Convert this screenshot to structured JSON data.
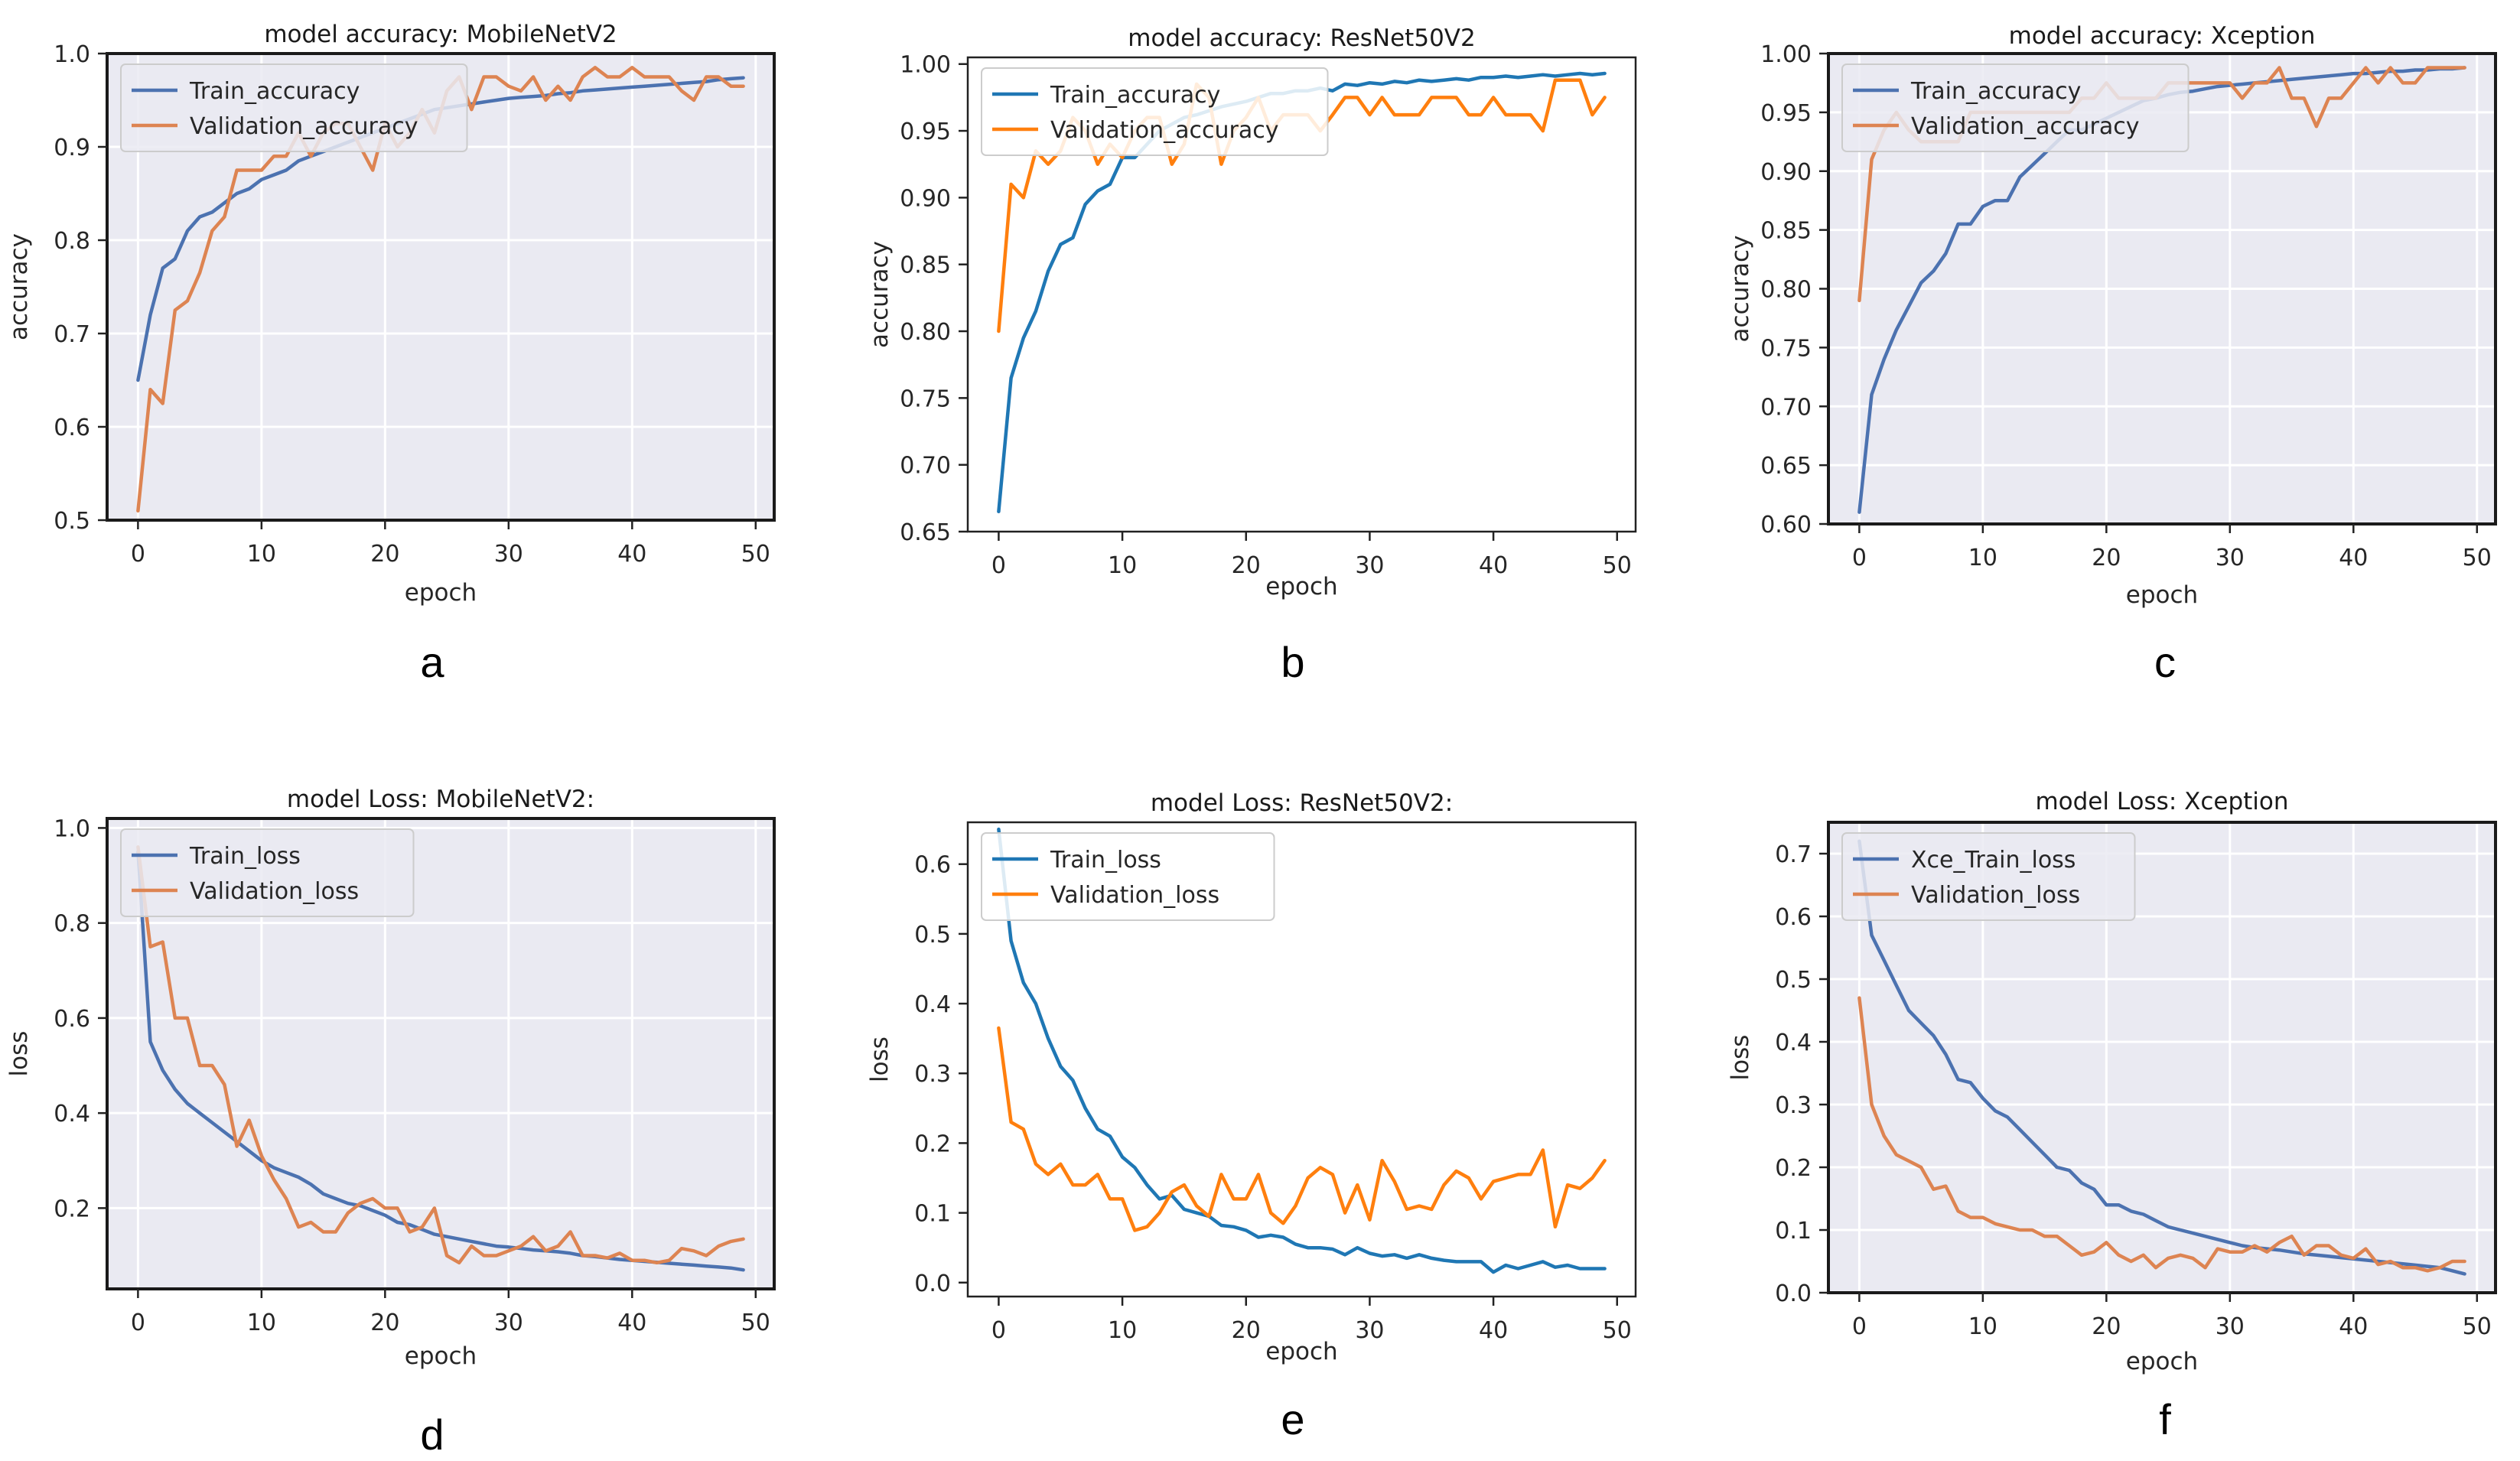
{
  "panel_letters": [
    "a",
    "b",
    "c",
    "d",
    "e",
    "f"
  ],
  "colors": {
    "seaborn_blue": "#4c72b0",
    "seaborn_orange": "#dd8452",
    "tab_blue": "#1f77b4",
    "tab_orange": "#ff7f0e",
    "seaborn_bg": "#eaeaf2",
    "grid": "#ffffff"
  },
  "chart_data": [
    {
      "type": "line",
      "title": "model accuracy: MobileNetV2",
      "xlabel": "epoch",
      "ylabel": "accuracy",
      "style": "seaborn",
      "xlim": [
        -2.5,
        51.5
      ],
      "ylim": [
        0.5,
        1.0
      ],
      "xticks": [
        0,
        10,
        20,
        30,
        40,
        50
      ],
      "yticks": [
        0.5,
        0.6,
        0.7,
        0.8,
        0.9,
        1.0
      ],
      "ytick_labels": [
        "0.5",
        "0.6",
        "0.7",
        "0.8",
        "0.9",
        "1.0"
      ],
      "legend": "top-left",
      "series": [
        {
          "name": "Train_accuracy",
          "color": "#4c72b0",
          "values": [
            0.65,
            0.72,
            0.77,
            0.78,
            0.81,
            0.825,
            0.83,
            0.84,
            0.85,
            0.855,
            0.865,
            0.87,
            0.875,
            0.885,
            0.89,
            0.895,
            0.9,
            0.905,
            0.91,
            0.915,
            0.92,
            0.925,
            0.93,
            0.935,
            0.94,
            0.942,
            0.944,
            0.946,
            0.948,
            0.95,
            0.952,
            0.953,
            0.954,
            0.955,
            0.957,
            0.958,
            0.96,
            0.961,
            0.962,
            0.963,
            0.964,
            0.965,
            0.966,
            0.967,
            0.968,
            0.969,
            0.97,
            0.972,
            0.973,
            0.974
          ]
        },
        {
          "name": "Validation_accuracy",
          "color": "#dd8452",
          "values": [
            0.51,
            0.64,
            0.625,
            0.725,
            0.735,
            0.765,
            0.81,
            0.825,
            0.875,
            0.875,
            0.875,
            0.89,
            0.89,
            0.915,
            0.89,
            0.915,
            0.925,
            0.925,
            0.9,
            0.875,
            0.925,
            0.9,
            0.915,
            0.94,
            0.915,
            0.96,
            0.975,
            0.94,
            0.975,
            0.975,
            0.965,
            0.96,
            0.975,
            0.95,
            0.965,
            0.95,
            0.975,
            0.985,
            0.975,
            0.975,
            0.985,
            0.975,
            0.975,
            0.975,
            0.96,
            0.95,
            0.975,
            0.975,
            0.965,
            0.965
          ]
        }
      ]
    },
    {
      "type": "line",
      "title": "model accuracy: ResNet50V2",
      "xlabel": "epoch",
      "ylabel": "accuracy",
      "style": "default",
      "xlim": [
        -2.5,
        51.5
      ],
      "ylim": [
        0.65,
        1.005
      ],
      "xticks": [
        0,
        10,
        20,
        30,
        40,
        50
      ],
      "yticks": [
        0.65,
        0.7,
        0.75,
        0.8,
        0.85,
        0.9,
        0.95,
        1.0
      ],
      "ytick_labels": [
        "0.65",
        "0.70",
        "0.75",
        "0.80",
        "0.85",
        "0.90",
        "0.95",
        "1.00"
      ],
      "legend": "top-left",
      "series": [
        {
          "name": "Train_accuracy",
          "color": "#1f77b4",
          "values": [
            0.665,
            0.765,
            0.795,
            0.815,
            0.845,
            0.865,
            0.87,
            0.895,
            0.905,
            0.91,
            0.93,
            0.93,
            0.94,
            0.95,
            0.955,
            0.96,
            0.962,
            0.965,
            0.968,
            0.97,
            0.972,
            0.975,
            0.978,
            0.978,
            0.98,
            0.98,
            0.982,
            0.98,
            0.985,
            0.984,
            0.986,
            0.985,
            0.987,
            0.986,
            0.988,
            0.987,
            0.988,
            0.989,
            0.988,
            0.99,
            0.99,
            0.991,
            0.99,
            0.991,
            0.992,
            0.991,
            0.992,
            0.993,
            0.992,
            0.993
          ]
        },
        {
          "name": "Validation_accuracy",
          "color": "#ff7f0e",
          "values": [
            0.8,
            0.91,
            0.9,
            0.935,
            0.925,
            0.935,
            0.96,
            0.95,
            0.925,
            0.94,
            0.93,
            0.95,
            0.96,
            0.96,
            0.925,
            0.94,
            0.985,
            0.975,
            0.925,
            0.95,
            0.96,
            0.975,
            0.95,
            0.962,
            0.962,
            0.962,
            0.95,
            0.962,
            0.975,
            0.975,
            0.962,
            0.975,
            0.962,
            0.962,
            0.962,
            0.975,
            0.975,
            0.975,
            0.962,
            0.962,
            0.975,
            0.962,
            0.962,
            0.962,
            0.95,
            0.988,
            0.988,
            0.988,
            0.962,
            0.975
          ]
        }
      ]
    },
    {
      "type": "line",
      "title": "model accuracy: Xception",
      "xlabel": "epoch",
      "ylabel": "accuracy",
      "style": "seaborn",
      "xlim": [
        -2.5,
        51.5
      ],
      "ylim": [
        0.6,
        1.0
      ],
      "xticks": [
        0,
        10,
        20,
        30,
        40,
        50
      ],
      "yticks": [
        0.6,
        0.65,
        0.7,
        0.75,
        0.8,
        0.85,
        0.9,
        0.95,
        1.0
      ],
      "ytick_labels": [
        "0.60",
        "0.65",
        "0.70",
        "0.75",
        "0.80",
        "0.85",
        "0.90",
        "0.95",
        "1.00"
      ],
      "legend": "top-left",
      "series": [
        {
          "name": "Train_accuracy",
          "color": "#4c72b0",
          "values": [
            0.61,
            0.71,
            0.74,
            0.765,
            0.785,
            0.805,
            0.815,
            0.83,
            0.855,
            0.855,
            0.87,
            0.875,
            0.875,
            0.895,
            0.905,
            0.915,
            0.925,
            0.935,
            0.935,
            0.94,
            0.945,
            0.95,
            0.955,
            0.96,
            0.962,
            0.965,
            0.967,
            0.968,
            0.97,
            0.972,
            0.973,
            0.974,
            0.975,
            0.976,
            0.977,
            0.978,
            0.979,
            0.98,
            0.981,
            0.982,
            0.983,
            0.983,
            0.984,
            0.985,
            0.985,
            0.986,
            0.986,
            0.987,
            0.987,
            0.988
          ]
        },
        {
          "name": "Validation_accuracy",
          "color": "#dd8452",
          "values": [
            0.79,
            0.91,
            0.935,
            0.95,
            0.935,
            0.925,
            0.925,
            0.925,
            0.925,
            0.95,
            0.95,
            0.95,
            0.95,
            0.95,
            0.95,
            0.95,
            0.95,
            0.95,
            0.962,
            0.962,
            0.975,
            0.962,
            0.962,
            0.962,
            0.962,
            0.975,
            0.975,
            0.975,
            0.975,
            0.975,
            0.975,
            0.962,
            0.975,
            0.975,
            0.988,
            0.962,
            0.962,
            0.938,
            0.962,
            0.962,
            0.975,
            0.988,
            0.975,
            0.988,
            0.975,
            0.975,
            0.988,
            0.988,
            0.988,
            0.988
          ]
        }
      ]
    },
    {
      "type": "line",
      "title": "model Loss: MobileNetV2:",
      "xlabel": "epoch",
      "ylabel": "loss",
      "style": "seaborn",
      "xlim": [
        -2.5,
        51.5
      ],
      "ylim": [
        0.03,
        1.02
      ],
      "xticks": [
        0,
        10,
        20,
        30,
        40,
        50
      ],
      "yticks": [
        0.2,
        0.4,
        0.6,
        0.8,
        1.0
      ],
      "ytick_labels": [
        "0.2",
        "0.4",
        "0.6",
        "0.8",
        "1.0"
      ],
      "legend": "top-left",
      "series": [
        {
          "name": "Train_loss",
          "color": "#4c72b0",
          "values": [
            0.95,
            0.55,
            0.49,
            0.45,
            0.42,
            0.4,
            0.38,
            0.36,
            0.34,
            0.32,
            0.3,
            0.285,
            0.275,
            0.265,
            0.25,
            0.23,
            0.22,
            0.21,
            0.205,
            0.195,
            0.185,
            0.17,
            0.165,
            0.155,
            0.145,
            0.14,
            0.135,
            0.13,
            0.125,
            0.12,
            0.118,
            0.115,
            0.112,
            0.11,
            0.108,
            0.105,
            0.1,
            0.098,
            0.095,
            0.092,
            0.09,
            0.088,
            0.086,
            0.084,
            0.082,
            0.08,
            0.078,
            0.076,
            0.074,
            0.07
          ]
        },
        {
          "name": "Validation_loss",
          "color": "#dd8452",
          "values": [
            0.96,
            0.75,
            0.76,
            0.6,
            0.6,
            0.5,
            0.5,
            0.46,
            0.33,
            0.385,
            0.31,
            0.26,
            0.22,
            0.16,
            0.17,
            0.15,
            0.15,
            0.19,
            0.21,
            0.22,
            0.2,
            0.2,
            0.15,
            0.16,
            0.2,
            0.1,
            0.085,
            0.12,
            0.1,
            0.1,
            0.11,
            0.12,
            0.14,
            0.11,
            0.12,
            0.15,
            0.1,
            0.1,
            0.095,
            0.105,
            0.09,
            0.09,
            0.085,
            0.09,
            0.115,
            0.11,
            0.1,
            0.12,
            0.13,
            0.135
          ]
        }
      ]
    },
    {
      "type": "line",
      "title": "model Loss: ResNet50V2:",
      "xlabel": "epoch",
      "ylabel": "loss",
      "style": "default",
      "xlim": [
        -2.5,
        51.5
      ],
      "ylim": [
        -0.02,
        0.66
      ],
      "xticks": [
        0,
        10,
        20,
        30,
        40,
        50
      ],
      "yticks": [
        0.0,
        0.1,
        0.2,
        0.3,
        0.4,
        0.5,
        0.6
      ],
      "ytick_labels": [
        "0.0",
        "0.1",
        "0.2",
        "0.3",
        "0.4",
        "0.5",
        "0.6"
      ],
      "legend": "top-left",
      "series": [
        {
          "name": "Train_loss",
          "color": "#1f77b4",
          "values": [
            0.65,
            0.49,
            0.43,
            0.4,
            0.35,
            0.31,
            0.29,
            0.25,
            0.22,
            0.21,
            0.18,
            0.165,
            0.14,
            0.12,
            0.125,
            0.105,
            0.1,
            0.095,
            0.082,
            0.08,
            0.075,
            0.065,
            0.068,
            0.065,
            0.055,
            0.05,
            0.05,
            0.048,
            0.04,
            0.05,
            0.042,
            0.038,
            0.04,
            0.035,
            0.04,
            0.035,
            0.032,
            0.03,
            0.03,
            0.03,
            0.015,
            0.025,
            0.02,
            0.025,
            0.03,
            0.022,
            0.025,
            0.02,
            0.02,
            0.02
          ]
        },
        {
          "name": "Validation_loss",
          "color": "#ff7f0e",
          "values": [
            0.365,
            0.23,
            0.22,
            0.17,
            0.155,
            0.17,
            0.14,
            0.14,
            0.155,
            0.12,
            0.12,
            0.075,
            0.08,
            0.1,
            0.13,
            0.14,
            0.11,
            0.095,
            0.155,
            0.12,
            0.12,
            0.155,
            0.1,
            0.085,
            0.11,
            0.15,
            0.165,
            0.155,
            0.1,
            0.14,
            0.09,
            0.175,
            0.145,
            0.105,
            0.11,
            0.105,
            0.14,
            0.16,
            0.15,
            0.12,
            0.145,
            0.15,
            0.155,
            0.155,
            0.19,
            0.08,
            0.14,
            0.135,
            0.15,
            0.175
          ]
        }
      ]
    },
    {
      "type": "line",
      "title": "model Loss: Xception",
      "xlabel": "epoch",
      "ylabel": "loss",
      "style": "seaborn",
      "xlim": [
        -2.5,
        51.5
      ],
      "ylim": [
        0.0,
        0.75
      ],
      "xticks": [
        0,
        10,
        20,
        30,
        40,
        50
      ],
      "yticks": [
        0.0,
        0.1,
        0.2,
        0.3,
        0.4,
        0.5,
        0.6,
        0.7
      ],
      "ytick_labels": [
        "0.0",
        "0.1",
        "0.2",
        "0.3",
        "0.4",
        "0.5",
        "0.6",
        "0.7"
      ],
      "legend": "top-left",
      "series": [
        {
          "name": "Xce_Train_loss",
          "color": "#4c72b0",
          "values": [
            0.72,
            0.57,
            0.53,
            0.49,
            0.45,
            0.43,
            0.41,
            0.38,
            0.34,
            0.335,
            0.31,
            0.29,
            0.28,
            0.26,
            0.24,
            0.22,
            0.2,
            0.195,
            0.175,
            0.165,
            0.14,
            0.14,
            0.13,
            0.125,
            0.115,
            0.105,
            0.1,
            0.095,
            0.09,
            0.085,
            0.08,
            0.075,
            0.072,
            0.07,
            0.068,
            0.065,
            0.062,
            0.06,
            0.058,
            0.056,
            0.054,
            0.052,
            0.05,
            0.048,
            0.046,
            0.044,
            0.042,
            0.04,
            0.035,
            0.03
          ]
        },
        {
          "name": "Validation_loss",
          "color": "#dd8452",
          "values": [
            0.47,
            0.3,
            0.25,
            0.22,
            0.21,
            0.2,
            0.165,
            0.17,
            0.13,
            0.12,
            0.12,
            0.11,
            0.105,
            0.1,
            0.1,
            0.09,
            0.09,
            0.075,
            0.06,
            0.065,
            0.08,
            0.06,
            0.05,
            0.06,
            0.04,
            0.055,
            0.06,
            0.055,
            0.04,
            0.07,
            0.065,
            0.065,
            0.075,
            0.065,
            0.08,
            0.09,
            0.06,
            0.075,
            0.075,
            0.06,
            0.055,
            0.07,
            0.045,
            0.05,
            0.04,
            0.04,
            0.035,
            0.04,
            0.05,
            0.05
          ]
        }
      ]
    }
  ]
}
